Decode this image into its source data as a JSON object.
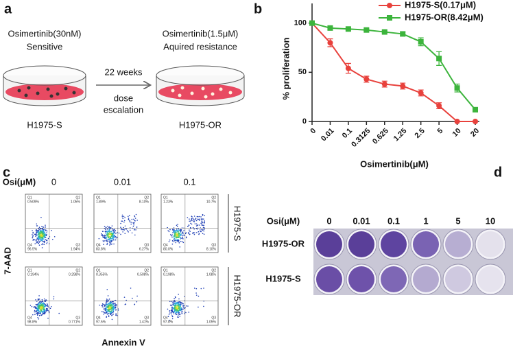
{
  "panel_labels": [
    "a",
    "b",
    "c",
    "d"
  ],
  "panel_a": {
    "left_drug": "Osimertinib(30nM)",
    "left_state": "Sensitive",
    "arrow_top": "22 weeks",
    "arrow_bottom": [
      "dose",
      "escalation"
    ],
    "right_drug": "Osimertinib(1.5μM)",
    "right_state": "Aquired resistance",
    "left_cell": "H1975-S",
    "right_cell": "H1975-OR"
  },
  "chart_data": {
    "type": "line",
    "x_label": "Osimertinib(μM)",
    "y_label": "% proliferation",
    "categories": [
      "0",
      "0.01",
      "0.1",
      "0.3125",
      "0.625",
      "1.25",
      "2.5",
      "5",
      "10",
      "20"
    ],
    "series": [
      {
        "name": "H1975-S(0.17μM)",
        "color": "#e8413c",
        "marker": "circle",
        "values": [
          100,
          80,
          54,
          43,
          38,
          36,
          29,
          16,
          0,
          0
        ],
        "errors": [
          0,
          4,
          5,
          3,
          3,
          3,
          3,
          3,
          0,
          0
        ]
      },
      {
        "name": "H1975-OR(8.42μM)",
        "color": "#3cb43c",
        "marker": "square",
        "values": [
          100,
          95,
          94,
          93,
          91,
          89,
          81,
          64,
          34,
          12
        ],
        "errors": [
          0,
          1,
          1,
          1,
          1,
          2,
          4,
          7,
          4,
          2
        ]
      }
    ],
    "ylim": [
      0,
      120
    ],
    "yticks": [
      0,
      50,
      100
    ],
    "legend": "top"
  },
  "panel_c": {
    "dose_label": "Osi(μM)",
    "doses": [
      "0",
      "0.01",
      "0.1"
    ],
    "rows": [
      "H1975-S",
      "H1975-OR"
    ],
    "y_label": "7-AAD",
    "x_label": "Annexin V",
    "quadrant_names": [
      "Q1",
      "Q2",
      "Q3",
      "Q4"
    ],
    "plots": [
      [
        [
          "0.509%",
          "1.05%",
          "1.94%",
          "96.5%"
        ],
        [
          "1.89%",
          "8.10%",
          "6.27%",
          "83.8%"
        ],
        [
          "1.23%",
          "10.7%",
          "8.10%",
          "80.0%"
        ]
      ],
      [
        [
          "0.194%",
          "0.298%",
          "0.771%",
          "98.8%"
        ],
        [
          "0.355%",
          "0.508%",
          "1.41%",
          "97.5%"
        ],
        [
          "0.198%",
          "1.08%",
          "1.05%",
          "97.8%"
        ]
      ]
    ]
  },
  "panel_d": {
    "dose_label": "Osi(μM)",
    "doses": [
      "0",
      "0.01",
      "0.1",
      "1",
      "5",
      "10"
    ],
    "rows": [
      "H1975-OR",
      "H1975-S"
    ]
  }
}
